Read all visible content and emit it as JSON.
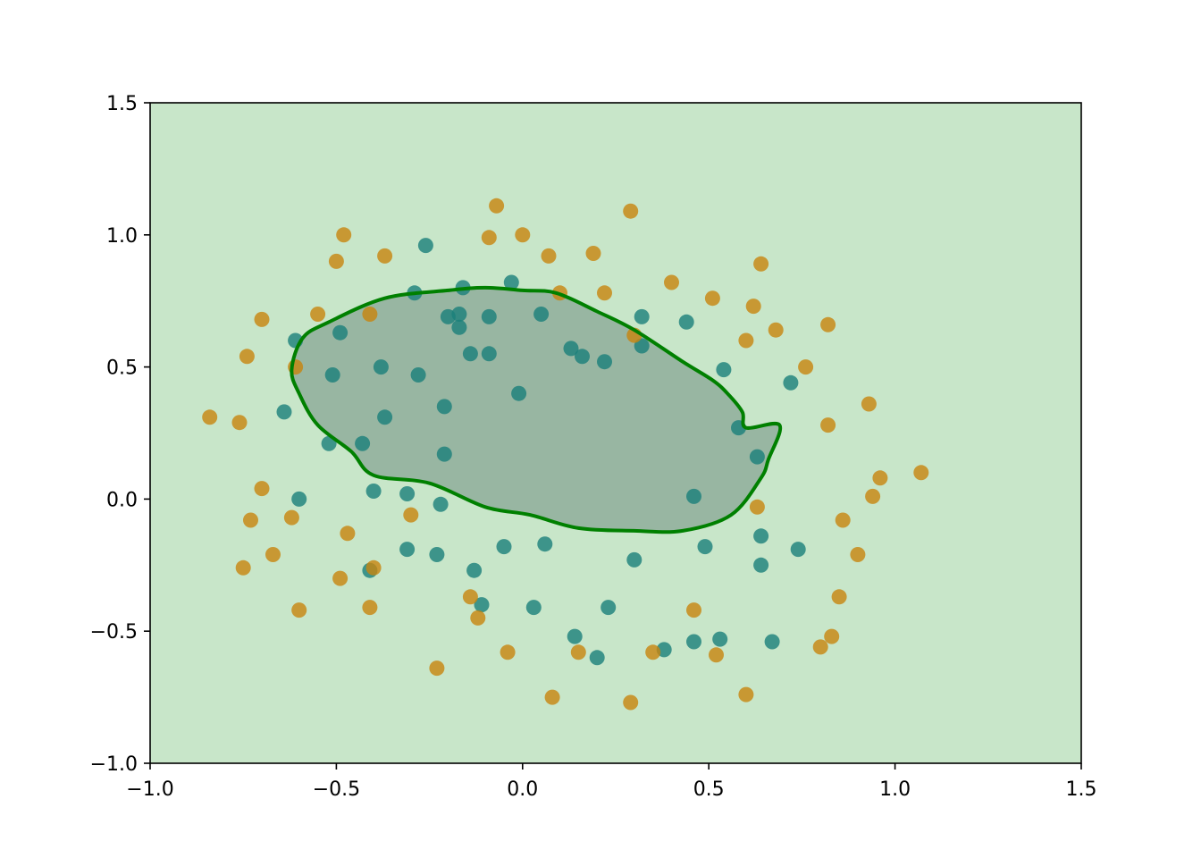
{
  "chart_data": {
    "type": "scatter",
    "title": "",
    "xlabel": "",
    "ylabel": "",
    "xlim": [
      -1.0,
      1.5
    ],
    "ylim": [
      -1.0,
      1.5
    ],
    "x_ticks": [
      -1.0,
      -0.5,
      0.0,
      0.5,
      1.0,
      1.5
    ],
    "x_tick_labels": [
      "−1.0",
      "−0.5",
      "0.0",
      "0.5",
      "1.0",
      "1.5"
    ],
    "y_ticks": [
      -1.0,
      -0.5,
      0.0,
      0.5,
      1.0,
      1.5
    ],
    "y_tick_labels": [
      "−1.0",
      "−0.5",
      "0.0",
      "0.5",
      "1.0",
      "1.5"
    ],
    "grid": false,
    "legend": "none",
    "colors": {
      "background_region": "#c8e6c9",
      "inside_region": "#98b6a2",
      "boundary": "#008000",
      "class_inner": "#1a7f7a",
      "class_outer": "#c8850e"
    },
    "decision_boundary": [
      [
        0.6,
        0.27
      ],
      [
        0.69,
        0.28
      ],
      [
        0.66,
        0.15
      ],
      [
        0.64,
        0.08
      ],
      [
        0.56,
        -0.06
      ],
      [
        0.43,
        -0.12
      ],
      [
        0.3,
        -0.12
      ],
      [
        0.15,
        -0.11
      ],
      [
        0.02,
        -0.06
      ],
      [
        -0.1,
        -0.03
      ],
      [
        -0.25,
        0.06
      ],
      [
        -0.4,
        0.09
      ],
      [
        -0.46,
        0.18
      ],
      [
        -0.55,
        0.28
      ],
      [
        -0.6,
        0.4
      ],
      [
        -0.62,
        0.49
      ],
      [
        -0.59,
        0.61
      ],
      [
        -0.52,
        0.67
      ],
      [
        -0.37,
        0.76
      ],
      [
        -0.2,
        0.79
      ],
      [
        -0.1,
        0.8
      ],
      [
        0.0,
        0.79
      ],
      [
        0.09,
        0.78
      ],
      [
        0.2,
        0.71
      ],
      [
        0.3,
        0.64
      ],
      [
        0.43,
        0.52
      ],
      [
        0.51,
        0.45
      ],
      [
        0.55,
        0.4
      ],
      [
        0.59,
        0.33
      ]
    ],
    "series": [
      {
        "label_class": "inner",
        "points": [
          [
            -0.26,
            0.96
          ],
          [
            -0.16,
            0.8
          ],
          [
            -0.03,
            0.82
          ],
          [
            -0.29,
            0.78
          ],
          [
            -0.2,
            0.69
          ],
          [
            -0.17,
            0.7
          ],
          [
            -0.17,
            0.65
          ],
          [
            -0.09,
            0.69
          ],
          [
            0.05,
            0.7
          ],
          [
            0.32,
            0.69
          ],
          [
            0.44,
            0.67
          ],
          [
            -0.61,
            0.6
          ],
          [
            -0.49,
            0.63
          ],
          [
            0.13,
            0.57
          ],
          [
            0.16,
            0.54
          ],
          [
            0.22,
            0.52
          ],
          [
            0.32,
            0.58
          ],
          [
            -0.14,
            0.55
          ],
          [
            -0.09,
            0.55
          ],
          [
            -0.38,
            0.5
          ],
          [
            -0.51,
            0.47
          ],
          [
            -0.28,
            0.47
          ],
          [
            0.54,
            0.49
          ],
          [
            0.72,
            0.44
          ],
          [
            -0.01,
            0.4
          ],
          [
            -0.64,
            0.33
          ],
          [
            -0.37,
            0.31
          ],
          [
            -0.21,
            0.35
          ],
          [
            0.58,
            0.27
          ],
          [
            -0.52,
            0.21
          ],
          [
            -0.43,
            0.21
          ],
          [
            -0.21,
            0.17
          ],
          [
            0.63,
            0.16
          ],
          [
            -0.4,
            0.03
          ],
          [
            -0.31,
            0.02
          ],
          [
            -0.22,
            -0.02
          ],
          [
            0.46,
            0.01
          ],
          [
            -0.6,
            0.0
          ],
          [
            0.06,
            -0.17
          ],
          [
            -0.05,
            -0.18
          ],
          [
            -0.31,
            -0.19
          ],
          [
            -0.23,
            -0.21
          ],
          [
            0.3,
            -0.23
          ],
          [
            0.49,
            -0.18
          ],
          [
            0.64,
            -0.14
          ],
          [
            0.74,
            -0.19
          ],
          [
            -0.41,
            -0.27
          ],
          [
            -0.13,
            -0.27
          ],
          [
            0.64,
            -0.25
          ],
          [
            0.03,
            -0.41
          ],
          [
            -0.11,
            -0.4
          ],
          [
            0.23,
            -0.41
          ],
          [
            0.14,
            -0.52
          ],
          [
            0.38,
            -0.57
          ],
          [
            0.46,
            -0.54
          ],
          [
            0.53,
            -0.53
          ],
          [
            0.67,
            -0.54
          ],
          [
            0.2,
            -0.6
          ]
        ]
      },
      {
        "label_class": "outer",
        "points": [
          [
            -0.07,
            1.11
          ],
          [
            0.29,
            1.09
          ],
          [
            -0.48,
            1.0
          ],
          [
            -0.09,
            0.99
          ],
          [
            0.0,
            1.0
          ],
          [
            -0.5,
            0.9
          ],
          [
            -0.37,
            0.92
          ],
          [
            0.07,
            0.92
          ],
          [
            0.19,
            0.93
          ],
          [
            0.64,
            0.89
          ],
          [
            0.4,
            0.82
          ],
          [
            0.1,
            0.78
          ],
          [
            0.22,
            0.78
          ],
          [
            0.51,
            0.76
          ],
          [
            0.62,
            0.73
          ],
          [
            -0.7,
            0.68
          ],
          [
            -0.55,
            0.7
          ],
          [
            -0.41,
            0.7
          ],
          [
            0.82,
            0.66
          ],
          [
            0.68,
            0.64
          ],
          [
            0.3,
            0.62
          ],
          [
            0.6,
            0.6
          ],
          [
            -0.74,
            0.54
          ],
          [
            -0.61,
            0.5
          ],
          [
            0.76,
            0.5
          ],
          [
            0.93,
            0.36
          ],
          [
            -0.84,
            0.31
          ],
          [
            -0.76,
            0.29
          ],
          [
            0.82,
            0.28
          ],
          [
            0.96,
            0.08
          ],
          [
            1.07,
            0.1
          ],
          [
            -0.7,
            0.04
          ],
          [
            0.94,
            0.01
          ],
          [
            -0.73,
            -0.08
          ],
          [
            -0.62,
            -0.07
          ],
          [
            -0.3,
            -0.06
          ],
          [
            0.63,
            -0.03
          ],
          [
            0.86,
            -0.08
          ],
          [
            -0.47,
            -0.13
          ],
          [
            0.9,
            -0.21
          ],
          [
            -0.67,
            -0.21
          ],
          [
            -0.75,
            -0.26
          ],
          [
            -0.4,
            -0.26
          ],
          [
            -0.49,
            -0.3
          ],
          [
            0.85,
            -0.37
          ],
          [
            -0.6,
            -0.42
          ],
          [
            -0.41,
            -0.41
          ],
          [
            -0.14,
            -0.37
          ],
          [
            -0.12,
            -0.45
          ],
          [
            0.46,
            -0.42
          ],
          [
            0.83,
            -0.52
          ],
          [
            0.8,
            -0.56
          ],
          [
            -0.04,
            -0.58
          ],
          [
            0.15,
            -0.58
          ],
          [
            0.35,
            -0.58
          ],
          [
            0.52,
            -0.59
          ],
          [
            -0.23,
            -0.64
          ],
          [
            0.08,
            -0.75
          ],
          [
            0.29,
            -0.77
          ],
          [
            0.6,
            -0.74
          ]
        ]
      }
    ]
  }
}
